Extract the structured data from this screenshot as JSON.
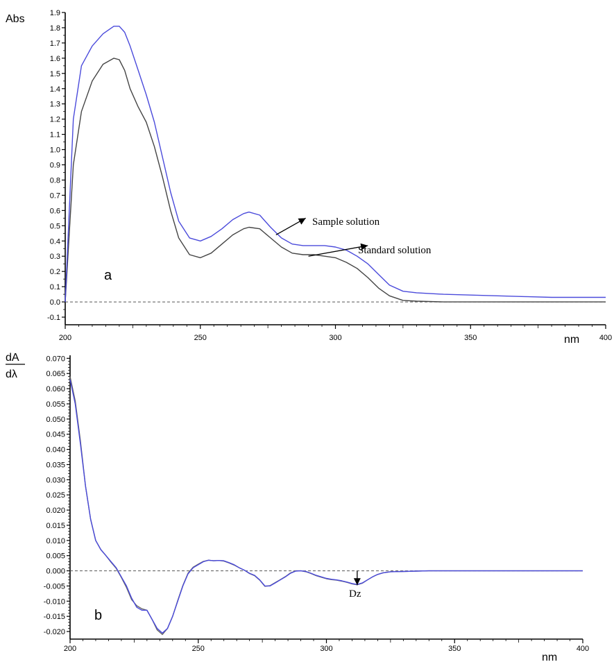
{
  "chart_data": [
    {
      "type": "line",
      "panel_label": "a",
      "ylabel": "Abs",
      "xlabel": "nm",
      "xlim": [
        200,
        400
      ],
      "ylim": [
        -0.15,
        1.9
      ],
      "x_ticks": [
        "200",
        "250",
        "300",
        "350",
        "400"
      ],
      "y_ticks": [
        "-0.1",
        "0.0",
        "0.1",
        "0.2",
        "0.3",
        "0.4",
        "0.5",
        "0.6",
        "0.7",
        "0.8",
        "0.9",
        "1.0",
        "1.1",
        "1.2",
        "1.3",
        "1.4",
        "1.5",
        "1.6",
        "1.7",
        "1.8",
        "1.9"
      ],
      "zero_line": true,
      "series": [
        {
          "name": "Sample solution",
          "color": "#4a4adb",
          "x": [
            200,
            203,
            206,
            210,
            214,
            218,
            220,
            222,
            224,
            227,
            230,
            233,
            236,
            239,
            242,
            246,
            250,
            254,
            258,
            262,
            266,
            268,
            272,
            276,
            280,
            284,
            288,
            292,
            296,
            300,
            304,
            308,
            312,
            316,
            320,
            325,
            330,
            340,
            350,
            360,
            370,
            380,
            390,
            400
          ],
          "y": [
            0.0,
            1.2,
            1.55,
            1.68,
            1.76,
            1.81,
            1.81,
            1.77,
            1.68,
            1.52,
            1.36,
            1.18,
            0.95,
            0.72,
            0.53,
            0.42,
            0.4,
            0.43,
            0.48,
            0.54,
            0.58,
            0.59,
            0.57,
            0.49,
            0.42,
            0.38,
            0.37,
            0.37,
            0.37,
            0.36,
            0.34,
            0.3,
            0.25,
            0.18,
            0.11,
            0.07,
            0.06,
            0.05,
            0.045,
            0.04,
            0.035,
            0.03,
            0.03,
            0.03
          ]
        },
        {
          "name": "Standard solution",
          "color": "#444444",
          "x": [
            200,
            203,
            206,
            210,
            214,
            218,
            220,
            222,
            224,
            227,
            230,
            233,
            236,
            239,
            242,
            246,
            250,
            254,
            258,
            262,
            266,
            268,
            272,
            276,
            280,
            284,
            288,
            292,
            296,
            300,
            304,
            308,
            312,
            316,
            320,
            325,
            330,
            340,
            350,
            360,
            370,
            380,
            390,
            400
          ],
          "y": [
            0.0,
            0.9,
            1.25,
            1.45,
            1.56,
            1.6,
            1.59,
            1.52,
            1.4,
            1.28,
            1.18,
            1.02,
            0.82,
            0.6,
            0.42,
            0.31,
            0.29,
            0.32,
            0.38,
            0.44,
            0.48,
            0.49,
            0.48,
            0.42,
            0.36,
            0.32,
            0.31,
            0.31,
            0.3,
            0.29,
            0.26,
            0.22,
            0.16,
            0.09,
            0.04,
            0.01,
            0.005,
            0.0,
            0.0,
            0.0,
            0.0,
            0.0,
            0.0,
            0.0
          ]
        }
      ],
      "annotations": [
        {
          "text": "Sample solution",
          "x": 289,
          "y": 0.55,
          "arrow_from": [
            278,
            0.44
          ]
        },
        {
          "text": "Standard solution",
          "x": 312,
          "y": 0.37,
          "arrow_from": [
            290,
            0.3
          ]
        }
      ]
    },
    {
      "type": "line",
      "panel_label": "b",
      "ylabel_top": "dA",
      "ylabel_bottom": "dλ",
      "xlabel": "nm",
      "xlim": [
        200,
        400
      ],
      "ylim": [
        -0.0225,
        0.071
      ],
      "x_ticks": [
        "200",
        "250",
        "300",
        "350",
        "400"
      ],
      "y_ticks": [
        "-0.020",
        "-0.015",
        "-0.010",
        "-0.005",
        "0.000",
        "0.005",
        "0.010",
        "0.015",
        "0.020",
        "0.025",
        "0.030",
        "0.035",
        "0.040",
        "0.045",
        "0.050",
        "0.055",
        "0.060",
        "0.065",
        "0.070"
      ],
      "zero_line": true,
      "series": [
        {
          "name": "Sample solution",
          "color": "#4a4adb",
          "x": [
            200,
            202,
            204,
            206,
            208,
            210,
            212,
            214,
            216,
            218,
            220,
            222,
            224,
            226,
            228,
            230,
            232,
            234,
            236,
            238,
            240,
            242,
            244,
            246,
            248,
            250,
            252,
            254,
            256,
            258,
            260,
            262,
            264,
            266,
            268,
            270,
            272,
            274,
            276,
            278,
            280,
            282,
            284,
            286,
            288,
            290,
            292,
            294,
            296,
            298,
            300,
            302,
            304,
            306,
            308,
            310,
            312,
            314,
            316,
            318,
            320,
            322,
            325,
            330,
            335,
            340,
            350,
            360,
            370,
            380,
            390,
            400
          ],
          "y": [
            0.063,
            0.055,
            0.042,
            0.028,
            0.017,
            0.01,
            0.007,
            0.005,
            0.003,
            0.001,
            -0.002,
            -0.005,
            -0.009,
            -0.012,
            -0.013,
            -0.013,
            -0.016,
            -0.019,
            -0.0205,
            -0.019,
            -0.015,
            -0.01,
            -0.005,
            -0.001,
            0.001,
            0.002,
            0.003,
            0.0035,
            0.0033,
            0.0034,
            0.0033,
            0.0027,
            0.002,
            0.001,
            0.0002,
            -0.0008,
            -0.0015,
            -0.003,
            -0.005,
            -0.005,
            -0.004,
            -0.003,
            -0.002,
            -0.0008,
            -0.0001,
            0.0,
            -0.0002,
            -0.0008,
            -0.0015,
            -0.002,
            -0.0025,
            -0.0028,
            -0.003,
            -0.0033,
            -0.0037,
            -0.0042,
            -0.0045,
            -0.004,
            -0.003,
            -0.002,
            -0.0012,
            -0.0007,
            -0.0003,
            -0.0002,
            -0.0001,
            0.0,
            0.0,
            0.0,
            0.0,
            0.0,
            0.0,
            0.0
          ]
        },
        {
          "name": "Standard solution",
          "color": "#666666",
          "x": [
            200,
            202,
            204,
            206,
            208,
            210,
            212,
            214,
            216,
            218,
            220,
            222,
            224,
            226,
            228,
            230,
            232,
            234,
            236,
            238,
            240,
            242,
            244,
            246,
            248,
            250,
            252,
            254,
            256,
            258,
            260,
            262,
            264,
            266,
            268,
            270,
            272,
            274,
            276,
            278,
            280,
            282,
            284,
            286,
            288,
            290,
            292,
            294,
            296,
            298,
            300,
            302,
            304,
            306,
            308,
            310,
            312,
            314,
            316,
            318,
            320,
            322,
            325,
            330,
            335,
            340,
            350,
            360,
            370,
            380,
            390,
            400
          ],
          "y": [
            0.064,
            0.056,
            0.043,
            0.028,
            0.017,
            0.01,
            0.007,
            0.005,
            0.0028,
            0.0008,
            -0.0022,
            -0.0055,
            -0.0095,
            -0.0115,
            -0.0125,
            -0.013,
            -0.016,
            -0.0195,
            -0.021,
            -0.019,
            -0.015,
            -0.0098,
            -0.0048,
            -0.0008,
            0.0012,
            0.0022,
            0.0031,
            0.0035,
            0.0033,
            0.0034,
            0.0032,
            0.0026,
            0.0019,
            0.001,
            0.0002,
            -0.0009,
            -0.0016,
            -0.0031,
            -0.0051,
            -0.0049,
            -0.0039,
            -0.0029,
            -0.0019,
            -0.0007,
            0.0,
            0.0,
            -0.0003,
            -0.0009,
            -0.0016,
            -0.0021,
            -0.0026,
            -0.0029,
            -0.0031,
            -0.0034,
            -0.0038,
            -0.0043,
            -0.0046,
            -0.0041,
            -0.003,
            -0.002,
            -0.0012,
            -0.0007,
            -0.0003,
            -0.0002,
            -0.0001,
            0.0,
            0.0,
            0.0,
            0.0,
            0.0,
            0.0,
            0.0
          ]
        }
      ],
      "annotations": [
        {
          "text": "Dz",
          "x": 312,
          "y": -0.0045
        }
      ]
    }
  ]
}
